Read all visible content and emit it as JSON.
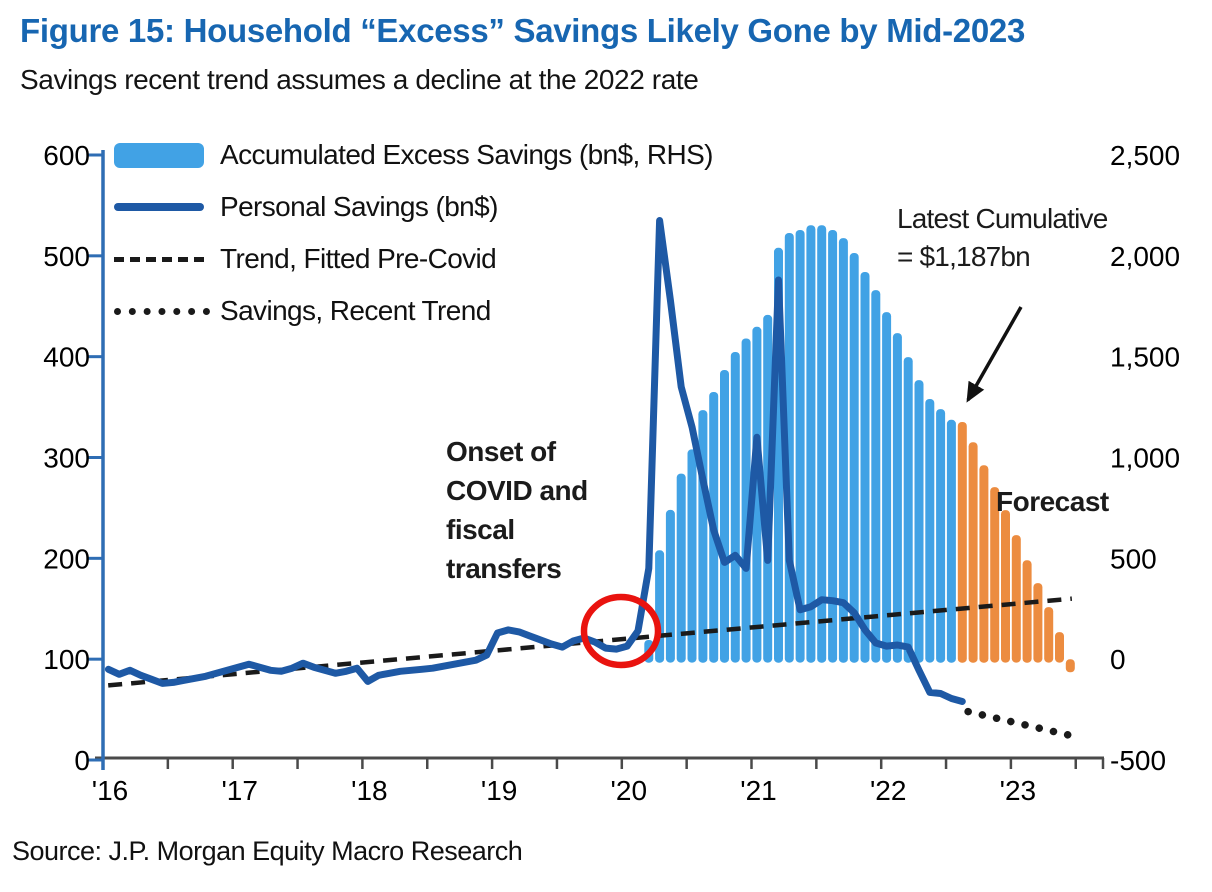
{
  "chart_data": {
    "type": "combo",
    "title": "Figure 15: Household “Excess” Savings Likely Gone by Mid-2023",
    "subtitle": "Savings recent trend assumes a decline at the 2022 rate",
    "source": "Source: J.P. Morgan Equity Macro Research",
    "unit": "bn$",
    "x_axis": {
      "labels": [
        "'16",
        "'17",
        "'18",
        "'19",
        "'20",
        "'21",
        "'22",
        "'23"
      ],
      "label_years": [
        2016,
        2017,
        2018,
        2019,
        2020,
        2021,
        2022,
        2023
      ],
      "minor_tick_interval_years": 0.5,
      "range_years": [
        2016,
        2023.75
      ]
    },
    "y_left_axis": {
      "ticks": [
        0,
        100,
        200,
        300,
        400,
        500,
        600
      ],
      "range": [
        0,
        600
      ],
      "applies_to": "Personal Savings (bn$)"
    },
    "y_right_axis": {
      "ticks": [
        -500,
        0,
        500,
        1000,
        1500,
        2000,
        2500
      ],
      "tick_labels": [
        "-500",
        "0",
        "500",
        "1,000",
        "1,500",
        "2,000",
        "2,500"
      ],
      "range": [
        -500,
        2500
      ],
      "applies_to": "Accumulated Excess Savings (bn$, RHS)"
    },
    "colors": {
      "bar_actual": "#41a2e5",
      "bar_forecast": "#ec8c40",
      "personal_savings_line": "#1e59a5",
      "trend_lines": "#1a1a1a",
      "title_blue": "#1766b1",
      "red_circle": "#e9130f",
      "left_axis_blue": "#2e6db4"
    },
    "legend": {
      "items": [
        {
          "label": "Accumulated Excess Savings (bn$, RHS)",
          "swatch": "bar",
          "color": "#41a2e5"
        },
        {
          "label": "Personal Savings (bn$)",
          "swatch": "line",
          "color": "#1e59a5"
        },
        {
          "label": "Trend, Fitted Pre-Covid",
          "swatch": "dashed",
          "color": "#1a1a1a"
        },
        {
          "label": "Savings, Recent Trend",
          "swatch": "dotted",
          "color": "#1a1a1a"
        }
      ]
    },
    "annotations": {
      "onset": "Onset of\nCOVID and\nfiscal\ntransfers",
      "latest_cumulative": "Latest Cumulative\n= $1,187bn",
      "forecast": "Forecast"
    },
    "callouts": {
      "latest_cumulative_bn": 1187
    },
    "series": [
      {
        "name": "Accumulated Excess Savings (bn$, RHS)",
        "data_name": "bars-accumulated-excess-savings",
        "type": "bar",
        "axis": "right",
        "color": "#41a2e5",
        "start_month": "2020-03",
        "monthly_values": [
          95,
          540,
          740,
          920,
          1040,
          1235,
          1325,
          1434,
          1523,
          1590,
          1648,
          1707,
          2040,
          2113,
          2128,
          2152,
          2152,
          2128,
          2088,
          2014,
          1920,
          1830,
          1721,
          1617,
          1498,
          1384,
          1290,
          1240,
          1187
        ]
      },
      {
        "name": "Accumulated Excess Savings Forecast (bn$, RHS)",
        "data_name": "bars-forecast",
        "type": "bar",
        "axis": "right",
        "color": "#ec8c40",
        "start_month": "2022-08",
        "monthly_values": [
          1176,
          1076,
          962,
          853,
          739,
          615,
          491,
          377,
          258,
          134,
          -65
        ]
      },
      {
        "name": "Personal Savings (bn$)",
        "data_name": "personal-savings-line",
        "type": "line",
        "axis": "left",
        "color": "#1e59a5",
        "start_month": "2016-01",
        "monthly_values": [
          90,
          85,
          89,
          84,
          80,
          76,
          77,
          79,
          81,
          83,
          86,
          89,
          92,
          95,
          92,
          89,
          88,
          91,
          96,
          92,
          89,
          86,
          88,
          91,
          78,
          84,
          86,
          88,
          89,
          90,
          91,
          93,
          95,
          97,
          99,
          104,
          126,
          129,
          127,
          123,
          119,
          115,
          112,
          118,
          121,
          117,
          111,
          110,
          113,
          128,
          190,
          535,
          456,
          370,
          330,
          278,
          228,
          196,
          203,
          190,
          320,
          198,
          476,
          198,
          149,
          152,
          159,
          158,
          156,
          146,
          129,
          116,
          113,
          114,
          112,
          89,
          67,
          66,
          61,
          58
        ]
      },
      {
        "name": "Trend, Fitted Pre-Covid",
        "data_name": "trend-precovid-dashed-line",
        "type": "line",
        "style": "dashed",
        "axis": "left",
        "color": "#1a1a1a",
        "points": [
          {
            "year": 2016.04,
            "value": 74
          },
          {
            "year": 2023.47,
            "value": 160
          }
        ]
      },
      {
        "name": "Savings, Recent Trend",
        "data_name": "savings-recent-trend-dotted-line",
        "type": "line",
        "style": "dotted",
        "axis": "left",
        "color": "#1a1a1a",
        "points": [
          {
            "year": 2022.67,
            "value": 48
          },
          {
            "year": 2023.47,
            "value": 24
          }
        ]
      }
    ]
  }
}
